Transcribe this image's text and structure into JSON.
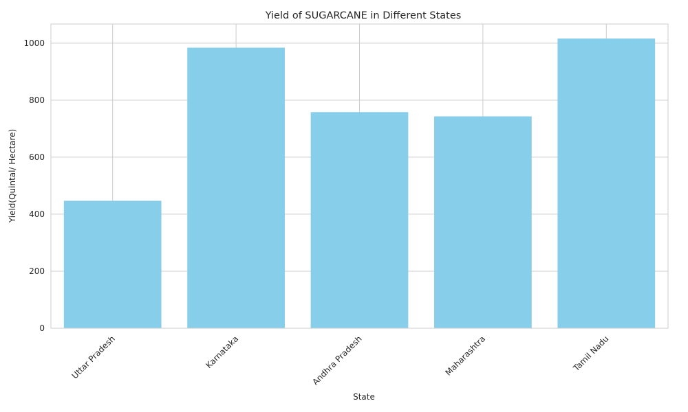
{
  "chart_data": {
    "type": "bar",
    "title": "Yield of SUGARCANE in Different States",
    "xlabel": "State",
    "ylabel": "Yield(Quintal/ Hectare)",
    "categories": [
      "Uttar Pradesh",
      "Karnataka",
      "Andhra Pradesh",
      "Maharashtra",
      "Tamil Nadu"
    ],
    "values": [
      447,
      984,
      758,
      743,
      1016
    ],
    "ylim": [
      0,
      1067
    ],
    "yticks": [
      0,
      200,
      400,
      600,
      800,
      1000
    ],
    "grid": true,
    "bar_color": "#87ceeb"
  }
}
